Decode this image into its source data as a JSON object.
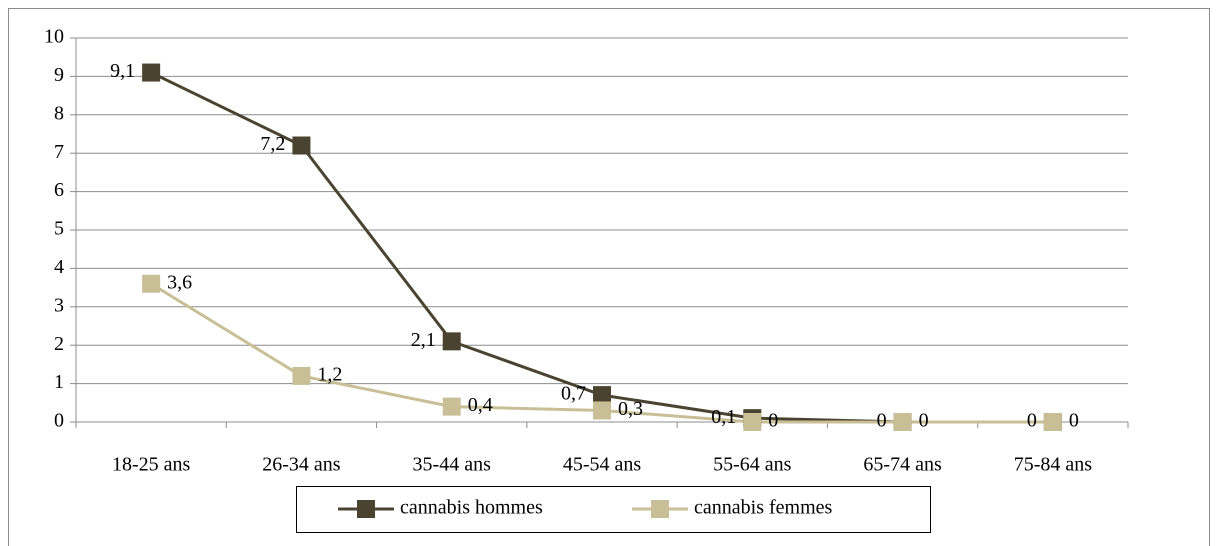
{
  "chart_data": {
    "type": "line",
    "categories": [
      "18-25 ans",
      "26-34 ans",
      "35-44 ans",
      "45-54 ans",
      "55-64 ans",
      "65-74 ans",
      "75-84 ans"
    ],
    "series": [
      {
        "name": "cannabis hommes",
        "color": "#4a4330",
        "values": [
          9.1,
          7.2,
          2.1,
          0.7,
          0.1,
          0,
          0
        ],
        "value_labels": [
          "9,1",
          "7,2",
          "2,1",
          "0,7",
          "0,1",
          "0",
          "0"
        ]
      },
      {
        "name": "cannabis femmes",
        "color": "#c9bf96",
        "values": [
          3.6,
          1.2,
          0.4,
          0.3,
          0,
          0,
          0
        ],
        "value_labels": [
          "3,6",
          "1,2",
          "0,4",
          "0,3",
          "0",
          "0",
          "0"
        ]
      }
    ],
    "ylim": [
      0,
      10
    ],
    "yticks": [
      0,
      1,
      2,
      3,
      4,
      5,
      6,
      7,
      8,
      9,
      10
    ],
    "grid": true,
    "legend": "bottom"
  }
}
